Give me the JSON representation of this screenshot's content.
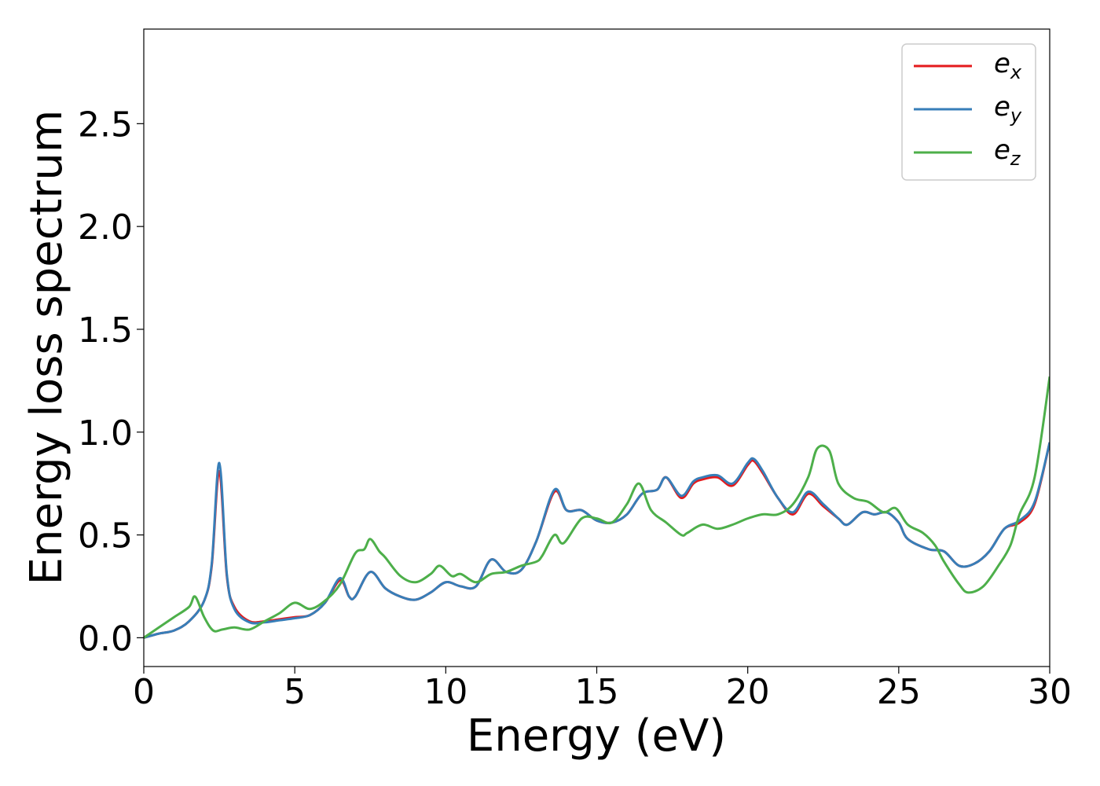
{
  "chart_data": {
    "type": "line",
    "title": "",
    "xlabel": "Energy (eV)",
    "ylabel": "Energy loss spectrum",
    "xlim": [
      0,
      30
    ],
    "ylim": [
      -0.14,
      2.96
    ],
    "xticks": [
      0,
      5,
      10,
      15,
      20,
      25,
      30
    ],
    "xtick_labels": [
      "0",
      "5",
      "10",
      "15",
      "20",
      "25",
      "30"
    ],
    "yticks": [
      0.0,
      0.5,
      1.0,
      1.5,
      2.0,
      2.5
    ],
    "ytick_labels": [
      "0.0",
      "0.5",
      "1.0",
      "1.5",
      "2.0",
      "2.5"
    ],
    "grid": false,
    "legend_position": "top-right",
    "colors": {
      "ex": "#e41a1c",
      "ey": "#377eb8",
      "ez": "#4daf4a"
    },
    "series": [
      {
        "name": "e_x",
        "legend_base": "e",
        "legend_sub": "x",
        "color": "#e41a1c",
        "points": [
          [
            0,
            0
          ],
          [
            0.5,
            0.02
          ],
          [
            1,
            0.035
          ],
          [
            1.5,
            0.08
          ],
          [
            2,
            0.18
          ],
          [
            2.25,
            0.35
          ],
          [
            2.5,
            0.81
          ],
          [
            2.75,
            0.3
          ],
          [
            3,
            0.15
          ],
          [
            3.5,
            0.08
          ],
          [
            4,
            0.08
          ],
          [
            4.5,
            0.09
          ],
          [
            5,
            0.1
          ],
          [
            5.5,
            0.11
          ],
          [
            6,
            0.17
          ],
          [
            6.5,
            0.28
          ],
          [
            6.8,
            0.2
          ],
          [
            7,
            0.2
          ],
          [
            7.5,
            0.32
          ],
          [
            8,
            0.24
          ],
          [
            8.5,
            0.2
          ],
          [
            9,
            0.185
          ],
          [
            9.5,
            0.22
          ],
          [
            10,
            0.27
          ],
          [
            10.5,
            0.25
          ],
          [
            11,
            0.25
          ],
          [
            11.5,
            0.38
          ],
          [
            12,
            0.32
          ],
          [
            12.5,
            0.33
          ],
          [
            13,
            0.47
          ],
          [
            13.6,
            0.71
          ],
          [
            14,
            0.62
          ],
          [
            14.5,
            0.62
          ],
          [
            15,
            0.57
          ],
          [
            15.5,
            0.56
          ],
          [
            16,
            0.6
          ],
          [
            16.5,
            0.7
          ],
          [
            17,
            0.72
          ],
          [
            17.3,
            0.78
          ],
          [
            17.8,
            0.68
          ],
          [
            18.2,
            0.75
          ],
          [
            18.5,
            0.77
          ],
          [
            19,
            0.78
          ],
          [
            19.5,
            0.74
          ],
          [
            20,
            0.84
          ],
          [
            20.2,
            0.86
          ],
          [
            20.5,
            0.8
          ],
          [
            21,
            0.68
          ],
          [
            21.5,
            0.6
          ],
          [
            22,
            0.7
          ],
          [
            22.5,
            0.64
          ],
          [
            23,
            0.58
          ],
          [
            23.3,
            0.55
          ],
          [
            23.8,
            0.61
          ],
          [
            24.2,
            0.6
          ],
          [
            24.6,
            0.61
          ],
          [
            25,
            0.56
          ],
          [
            25.3,
            0.48
          ],
          [
            26,
            0.43
          ],
          [
            26.5,
            0.42
          ],
          [
            27,
            0.35
          ],
          [
            27.5,
            0.36
          ],
          [
            28,
            0.42
          ],
          [
            28.5,
            0.53
          ],
          [
            29,
            0.56
          ],
          [
            29.5,
            0.65
          ],
          [
            30,
            0.95
          ]
        ]
      },
      {
        "name": "e_y",
        "legend_base": "e",
        "legend_sub": "y",
        "color": "#377eb8",
        "points": [
          [
            0,
            0
          ],
          [
            0.5,
            0.02
          ],
          [
            1,
            0.035
          ],
          [
            1.5,
            0.08
          ],
          [
            2,
            0.18
          ],
          [
            2.25,
            0.36
          ],
          [
            2.5,
            0.85
          ],
          [
            2.75,
            0.31
          ],
          [
            3,
            0.14
          ],
          [
            3.5,
            0.075
          ],
          [
            4,
            0.075
          ],
          [
            4.5,
            0.085
          ],
          [
            5,
            0.095
          ],
          [
            5.5,
            0.11
          ],
          [
            6,
            0.17
          ],
          [
            6.5,
            0.29
          ],
          [
            6.8,
            0.2
          ],
          [
            7,
            0.2
          ],
          [
            7.5,
            0.32
          ],
          [
            8,
            0.24
          ],
          [
            8.5,
            0.2
          ],
          [
            9,
            0.185
          ],
          [
            9.5,
            0.22
          ],
          [
            10,
            0.27
          ],
          [
            10.5,
            0.25
          ],
          [
            11,
            0.25
          ],
          [
            11.5,
            0.38
          ],
          [
            12,
            0.32
          ],
          [
            12.5,
            0.33
          ],
          [
            13,
            0.47
          ],
          [
            13.6,
            0.72
          ],
          [
            14,
            0.62
          ],
          [
            14.5,
            0.62
          ],
          [
            15,
            0.57
          ],
          [
            15.5,
            0.56
          ],
          [
            16,
            0.6
          ],
          [
            16.5,
            0.7
          ],
          [
            17,
            0.72
          ],
          [
            17.3,
            0.78
          ],
          [
            17.8,
            0.69
          ],
          [
            18.2,
            0.76
          ],
          [
            18.5,
            0.78
          ],
          [
            19,
            0.79
          ],
          [
            19.5,
            0.75
          ],
          [
            20,
            0.85
          ],
          [
            20.2,
            0.87
          ],
          [
            20.5,
            0.81
          ],
          [
            21,
            0.68
          ],
          [
            21.5,
            0.61
          ],
          [
            22,
            0.71
          ],
          [
            22.5,
            0.65
          ],
          [
            23,
            0.58
          ],
          [
            23.3,
            0.55
          ],
          [
            23.8,
            0.61
          ],
          [
            24.2,
            0.6
          ],
          [
            24.6,
            0.61
          ],
          [
            25,
            0.56
          ],
          [
            25.3,
            0.48
          ],
          [
            26,
            0.43
          ],
          [
            26.5,
            0.42
          ],
          [
            27,
            0.35
          ],
          [
            27.5,
            0.36
          ],
          [
            28,
            0.42
          ],
          [
            28.5,
            0.53
          ],
          [
            29,
            0.57
          ],
          [
            29.5,
            0.66
          ],
          [
            30,
            0.95
          ]
        ]
      },
      {
        "name": "e_z",
        "legend_base": "e",
        "legend_sub": "z",
        "color": "#4daf4a",
        "points": [
          [
            0,
            0
          ],
          [
            0.5,
            0.05
          ],
          [
            1,
            0.1
          ],
          [
            1.5,
            0.15
          ],
          [
            1.7,
            0.2
          ],
          [
            2,
            0.1
          ],
          [
            2.3,
            0.035
          ],
          [
            2.6,
            0.04
          ],
          [
            3,
            0.05
          ],
          [
            3.5,
            0.04
          ],
          [
            4,
            0.08
          ],
          [
            4.5,
            0.12
          ],
          [
            5,
            0.17
          ],
          [
            5.5,
            0.14
          ],
          [
            6,
            0.18
          ],
          [
            6.5,
            0.26
          ],
          [
            7,
            0.41
          ],
          [
            7.3,
            0.43
          ],
          [
            7.5,
            0.48
          ],
          [
            7.8,
            0.42
          ],
          [
            8,
            0.39
          ],
          [
            8.5,
            0.3
          ],
          [
            9,
            0.27
          ],
          [
            9.5,
            0.31
          ],
          [
            9.8,
            0.35
          ],
          [
            10.2,
            0.3
          ],
          [
            10.5,
            0.31
          ],
          [
            11,
            0.27
          ],
          [
            11.5,
            0.31
          ],
          [
            12,
            0.32
          ],
          [
            12.5,
            0.35
          ],
          [
            13,
            0.37
          ],
          [
            13.2,
            0.4
          ],
          [
            13.6,
            0.5
          ],
          [
            13.9,
            0.46
          ],
          [
            14.5,
            0.58
          ],
          [
            15,
            0.58
          ],
          [
            15.5,
            0.56
          ],
          [
            16,
            0.65
          ],
          [
            16.4,
            0.75
          ],
          [
            16.8,
            0.62
          ],
          [
            17.3,
            0.56
          ],
          [
            17.8,
            0.5
          ],
          [
            18,
            0.51
          ],
          [
            18.5,
            0.55
          ],
          [
            19,
            0.53
          ],
          [
            19.5,
            0.55
          ],
          [
            20,
            0.58
          ],
          [
            20.5,
            0.6
          ],
          [
            21,
            0.6
          ],
          [
            21.5,
            0.65
          ],
          [
            22,
            0.78
          ],
          [
            22.3,
            0.92
          ],
          [
            22.7,
            0.91
          ],
          [
            23,
            0.75
          ],
          [
            23.5,
            0.68
          ],
          [
            24,
            0.66
          ],
          [
            24.5,
            0.61
          ],
          [
            24.9,
            0.63
          ],
          [
            25.3,
            0.55
          ],
          [
            25.8,
            0.51
          ],
          [
            26.2,
            0.45
          ],
          [
            26.5,
            0.37
          ],
          [
            27,
            0.26
          ],
          [
            27.3,
            0.22
          ],
          [
            27.8,
            0.25
          ],
          [
            28.3,
            0.35
          ],
          [
            28.7,
            0.45
          ],
          [
            29,
            0.6
          ],
          [
            29.5,
            0.78
          ],
          [
            30,
            1.27
          ]
        ]
      }
    ]
  }
}
